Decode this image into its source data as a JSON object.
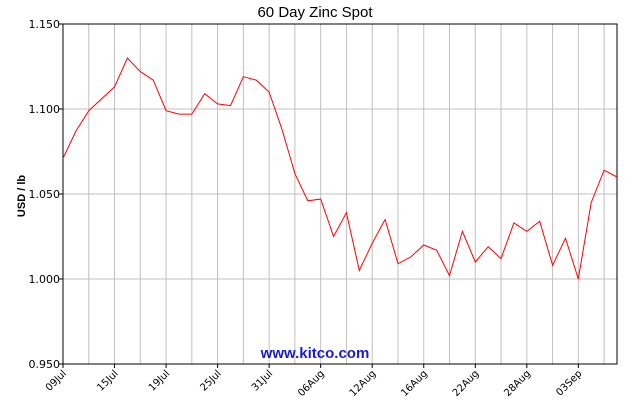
{
  "chart_data": {
    "type": "line",
    "title": "60 Day Zinc Spot",
    "ylabel": "USD / lb",
    "xlabel": "",
    "ylim": [
      0.95,
      1.15
    ],
    "yticks": [
      "1.150",
      "1.100",
      "1.050",
      "1.000",
      "0.950"
    ],
    "ytick_values": [
      1.15,
      1.1,
      1.05,
      1.0,
      0.95
    ],
    "xtick_labels": [
      "09Jul",
      "15Jul",
      "19Jul",
      "25Jul",
      "31Jul",
      "06Aug",
      "12Aug",
      "16Aug",
      "22Aug",
      "28Aug",
      "03Sep"
    ],
    "xtick_index": [
      0,
      4,
      8,
      12,
      16,
      20,
      24,
      28,
      32,
      36,
      40
    ],
    "grid": true,
    "line_color": "#ff0000",
    "watermark": "www.kitco.com",
    "series": [
      {
        "values": [
          1.071,
          1.087,
          1.099,
          1.106,
          1.113,
          1.13,
          1.122,
          1.117,
          1.099,
          1.097,
          1.097,
          1.109,
          1.103,
          1.102,
          1.119,
          1.117,
          1.11,
          1.088,
          1.062,
          1.046,
          1.047,
          1.025,
          1.039,
          1.005,
          1.021,
          1.035,
          1.009,
          1.013,
          1.02,
          1.017,
          1.002,
          1.028,
          1.01,
          1.019,
          1.012,
          1.033,
          1.028,
          1.034,
          1.008,
          1.024,
          1.0,
          1.045,
          1.064,
          1.06
        ]
      }
    ]
  }
}
